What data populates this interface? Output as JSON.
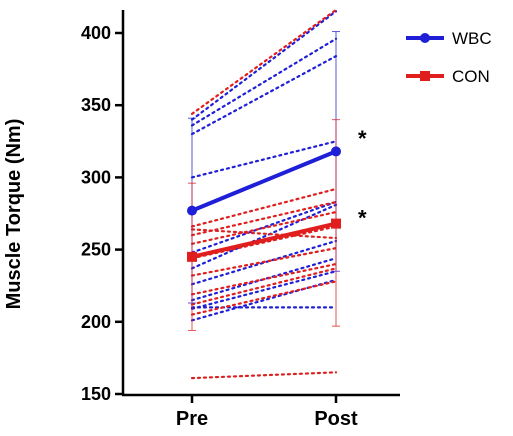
{
  "chart_data": {
    "type": "line",
    "ylabel": "Muscle Torque (Nm)",
    "categories": [
      "Pre",
      "Post"
    ],
    "ylim": [
      150,
      420
    ],
    "yticks": [
      150,
      200,
      250,
      300,
      350,
      400
    ],
    "legend_position": "top-right",
    "series": [
      {
        "name": "WBC",
        "color": "#1f1fd8",
        "marker": "circle",
        "values": [
          277,
          318
        ],
        "error_lower": [
          213,
          235
        ],
        "error_upper": [
          341,
          401
        ]
      },
      {
        "name": "CON",
        "color": "#e01e1e",
        "marker": "square",
        "values": [
          245,
          268
        ],
        "error_lower": [
          194,
          197
        ],
        "error_upper": [
          296,
          340
        ]
      }
    ],
    "individuals": [
      {
        "group": "WBC",
        "values": [
          340,
          415
        ]
      },
      {
        "group": "WBC",
        "values": [
          336,
          396
        ]
      },
      {
        "group": "WBC",
        "values": [
          330,
          384
        ]
      },
      {
        "group": "WBC",
        "values": [
          300,
          325
        ]
      },
      {
        "group": "WBC",
        "values": [
          248,
          283
        ]
      },
      {
        "group": "WBC",
        "values": [
          237,
          281
        ]
      },
      {
        "group": "WBC",
        "values": [
          226,
          256
        ]
      },
      {
        "group": "WBC",
        "values": [
          215,
          244
        ]
      },
      {
        "group": "WBC",
        "values": [
          209,
          235
        ]
      },
      {
        "group": "WBC",
        "values": [
          201,
          229
        ]
      },
      {
        "group": "WBC",
        "values": [
          210,
          210
        ]
      },
      {
        "group": "CON",
        "values": [
          344,
          416
        ]
      },
      {
        "group": "CON",
        "values": [
          266,
          292
        ]
      },
      {
        "group": "CON",
        "values": [
          260,
          283
        ]
      },
      {
        "group": "CON",
        "values": [
          254,
          276
        ]
      },
      {
        "group": "CON",
        "values": [
          264,
          258
        ]
      },
      {
        "group": "CON",
        "values": [
          244,
          266
        ]
      },
      {
        "group": "CON",
        "values": [
          232,
          251
        ]
      },
      {
        "group": "CON",
        "values": [
          219,
          240
        ]
      },
      {
        "group": "CON",
        "values": [
          212,
          237
        ]
      },
      {
        "group": "CON",
        "values": [
          205,
          228
        ]
      },
      {
        "group": "CON",
        "values": [
          161,
          165
        ]
      }
    ],
    "annotations": [
      {
        "text": "*",
        "category": "Post",
        "value": 330
      },
      {
        "text": "*",
        "category": "Post",
        "value": 275
      }
    ]
  }
}
